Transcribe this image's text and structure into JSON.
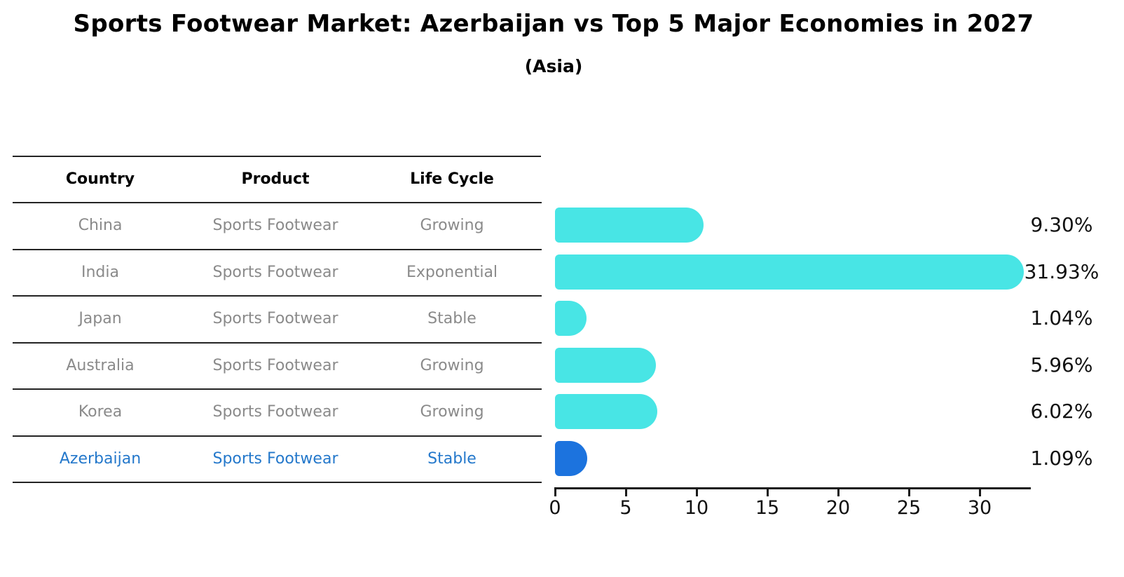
{
  "title": "Sports Footwear Market: Azerbaijan vs Top 5 Major Economies in 2027",
  "subtitle": "(Asia)",
  "table": {
    "headers": [
      "Country",
      "Product",
      "Life Cycle"
    ],
    "rows": [
      {
        "country": "China",
        "product": "Sports Footwear",
        "life_cycle": "Growing",
        "value_label": "9.30%",
        "highlight": false
      },
      {
        "country": "India",
        "product": "Sports Footwear",
        "life_cycle": "Exponential",
        "value_label": "31.93%",
        "highlight": false
      },
      {
        "country": "Japan",
        "product": "Sports Footwear",
        "life_cycle": "Stable",
        "value_label": "1.04%",
        "highlight": false
      },
      {
        "country": "Australia",
        "product": "Sports Footwear",
        "life_cycle": "Growing",
        "value_label": "5.96%",
        "highlight": false
      },
      {
        "country": "Korea",
        "product": "Sports Footwear",
        "life_cycle": "Growing",
        "value_label": "6.02%",
        "highlight": false
      },
      {
        "country": "Azerbaijan",
        "product": "Sports Footwear",
        "life_cycle": "Stable",
        "value_label": "1.09%",
        "highlight": true
      }
    ]
  },
  "chart_data": {
    "type": "bar",
    "orientation": "horizontal",
    "title": "Sports Footwear Market: Azerbaijan vs Top 5 Major Economies in 2027 (Asia)",
    "categories": [
      "China",
      "India",
      "Japan",
      "Australia",
      "Korea",
      "Azerbaijan"
    ],
    "values": [
      9.3,
      31.93,
      1.04,
      5.96,
      6.02,
      1.09
    ],
    "value_labels": [
      "9.30%",
      "31.93%",
      "1.04%",
      "5.96%",
      "6.02%",
      "1.09%"
    ],
    "unit": "percent",
    "xticks": [
      0,
      5,
      10,
      15,
      20,
      25,
      30
    ],
    "xtick_labels": [
      "0",
      "5",
      "10",
      "15",
      "20",
      "25",
      "30"
    ],
    "xlim": [
      0,
      33.5
    ],
    "grid": false,
    "legend": false,
    "bar_color": "#48E5E5",
    "highlight_color": "#1C73DE",
    "highlight_index": 5,
    "highlight_category": "Azerbaijan"
  },
  "colors": {
    "bar_cyan": "#48E5E5",
    "bar_blue": "#1C73DE",
    "highlight_text": "#2478CB",
    "table_text": "#8A8A8A",
    "heading_text": "#000000",
    "axis": "#1A1A1A"
  }
}
